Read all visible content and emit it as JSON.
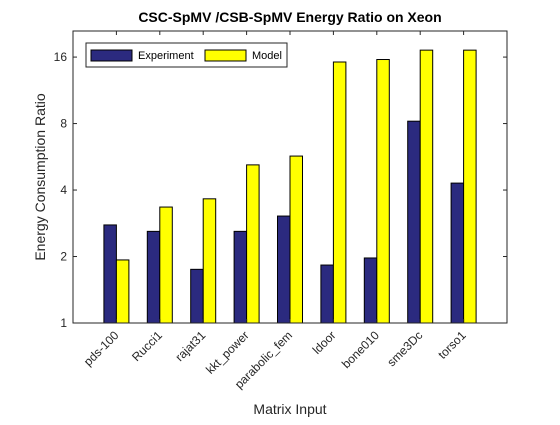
{
  "chart_data": {
    "type": "bar",
    "title": "CSC-SpMV /CSB-SpMV Energy Ratio on Xeon",
    "xlabel": "Matrix Input",
    "ylabel": "Energy Consumption Ratio",
    "y_scale": "log2",
    "ylim": [
      1,
      21
    ],
    "yticks": [
      1,
      2,
      4,
      8,
      16
    ],
    "ytick_labels": [
      "1",
      "2",
      "4",
      "8",
      "16"
    ],
    "categories": [
      "pds-100",
      "Rucci1",
      "rajat31",
      "kkt_power",
      "parabolic_fem",
      "ldoor",
      "bone010",
      "sme3Dc",
      "torso1"
    ],
    "series": [
      {
        "name": "Experiment",
        "color": "#2b2a7f",
        "values": [
          2.78,
          2.6,
          1.75,
          2.6,
          3.05,
          1.83,
          1.97,
          8.2,
          4.3
        ]
      },
      {
        "name": "Model",
        "color": "#ffff00",
        "values": [
          1.93,
          3.35,
          3.65,
          5.2,
          5.7,
          15.2,
          15.6,
          17.2,
          17.2
        ]
      }
    ],
    "legend_position": "top-left",
    "grid": false,
    "box": true
  }
}
